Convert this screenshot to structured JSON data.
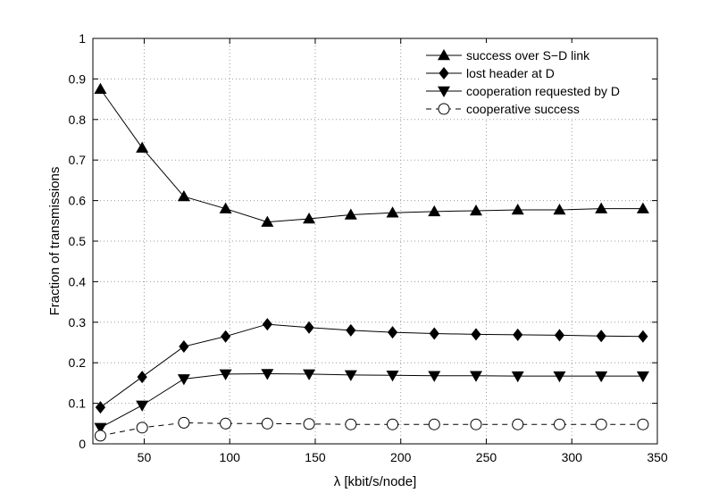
{
  "chart_data": {
    "type": "line",
    "title": "",
    "xlabel": "λ  [kbit/s/node]",
    "ylabel": "Fraction of transmissions",
    "xlim": [
      20,
      350
    ],
    "ylim": [
      0,
      1
    ],
    "xticks": [
      50,
      100,
      150,
      200,
      250,
      300,
      350
    ],
    "yticks": [
      0,
      0.1,
      0.2,
      0.3,
      0.4,
      0.5,
      0.6,
      0.7,
      0.8,
      0.9,
      1
    ],
    "grid": true,
    "legend_position": "top-right",
    "x": [
      24.4,
      48.8,
      73.2,
      97.6,
      122,
      146.4,
      170.8,
      195.2,
      219.6,
      244,
      268.4,
      292.8,
      317.2,
      341.6
    ],
    "series": [
      {
        "name": "success over S−D link",
        "marker": "triangle-up",
        "line": "solid",
        "values": [
          0.875,
          0.73,
          0.61,
          0.58,
          0.547,
          0.555,
          0.565,
          0.57,
          0.573,
          0.575,
          0.577,
          0.577,
          0.58,
          0.58
        ]
      },
      {
        "name": "lost header at D",
        "marker": "diamond",
        "line": "solid",
        "values": [
          0.09,
          0.165,
          0.24,
          0.265,
          0.295,
          0.287,
          0.28,
          0.275,
          0.272,
          0.27,
          0.269,
          0.268,
          0.266,
          0.265
        ]
      },
      {
        "name": "cooperation requested by D",
        "marker": "triangle-down",
        "line": "solid",
        "values": [
          0.04,
          0.095,
          0.16,
          0.172,
          0.173,
          0.172,
          0.17,
          0.169,
          0.168,
          0.168,
          0.167,
          0.167,
          0.167,
          0.167
        ]
      },
      {
        "name": "cooperative success",
        "marker": "circle-open",
        "line": "dashed",
        "values": [
          0.02,
          0.04,
          0.052,
          0.05,
          0.05,
          0.049,
          0.048,
          0.048,
          0.048,
          0.048,
          0.048,
          0.048,
          0.048,
          0.048
        ]
      }
    ]
  }
}
